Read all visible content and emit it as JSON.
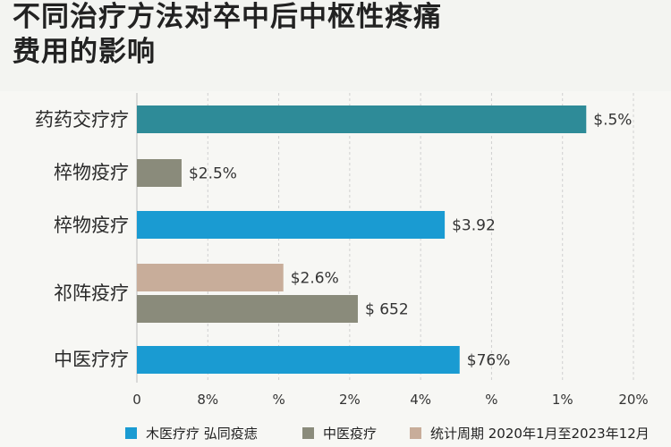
{
  "title_line1": "不同治疗方法对卒中后中枢性疼痛",
  "title_line2": "费用的影响",
  "colors": {
    "teal": "#2e8b98",
    "gray": "#8a8b7b",
    "blue": "#1a9bd2",
    "tan": "#c8ad9a",
    "gridline": "#d0d0d0"
  },
  "chart_data": {
    "type": "bar",
    "orientation": "horizontal",
    "categories": [
      "药药交疗疗",
      "椊物疫疗",
      "椊物疫疗",
      "祁阵疫疗",
      "中医疗疗"
    ],
    "bars": [
      {
        "category_index": 0,
        "value": 18.1,
        "label": "$.5%",
        "color": "teal"
      },
      {
        "category_index": 1,
        "value": 1.8,
        "label": "$2.5%",
        "color": "gray"
      },
      {
        "category_index": 2,
        "value": 12.4,
        "label": "$3.92",
        "color": "blue"
      },
      {
        "category_index": 3,
        "value": 5.9,
        "label": "$2.6%",
        "color": "tan"
      },
      {
        "category_index": 3,
        "value": 8.9,
        "label": "$ 652",
        "color": "gray"
      },
      {
        "category_index": 4,
        "value": 13.0,
        "label": "$76%",
        "color": "blue"
      }
    ],
    "xlim": [
      0,
      20
    ],
    "x_tick_labels": [
      "0",
      "8%",
      "%",
      "2%",
      "4%",
      "%",
      "1%",
      "20%"
    ],
    "grid": true,
    "legend": [
      {
        "label": "木医疗疗 弘同疫痣",
        "color": "blue"
      },
      {
        "label": "中医疫疗",
        "color": "gray"
      },
      {
        "label": "统计周期  2020年1月至2023年12月",
        "color": "tan"
      }
    ],
    "legend_position": "bottom"
  }
}
